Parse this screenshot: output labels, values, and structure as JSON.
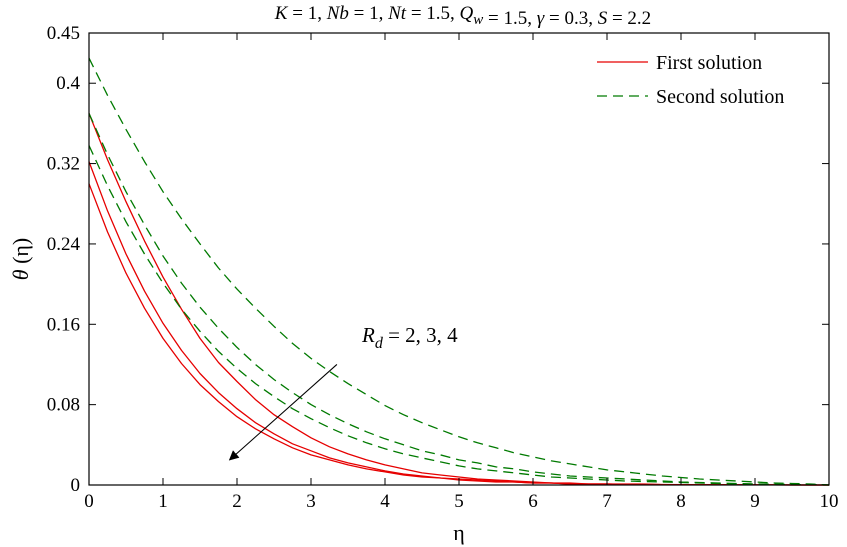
{
  "chart_data": {
    "type": "line",
    "title": {
      "parts": [
        {
          "t": "K",
          "style": "italic"
        },
        {
          "t": " = 1, "
        },
        {
          "t": "Nb",
          "style": "italic"
        },
        {
          "t": " = 1, "
        },
        {
          "t": "Nt",
          "style": "italic"
        },
        {
          "t": " = 1.5, "
        },
        {
          "t": "Q",
          "style": "italic"
        },
        {
          "t": "w",
          "style": "italic",
          "sub": true
        },
        {
          "t": " = 1.5, "
        },
        {
          "t": "γ",
          "style": "italic"
        },
        {
          "t": " = 0.3, "
        },
        {
          "t": "S",
          "style": "italic"
        },
        {
          "t": " = 2.2"
        }
      ]
    },
    "xlabel": "η",
    "ylabel": {
      "main": "θ",
      "rest": " (η)"
    },
    "xlim": [
      0,
      10
    ],
    "ylim": [
      0,
      0.45
    ],
    "xticks": [
      0,
      1,
      2,
      3,
      4,
      5,
      6,
      7,
      8,
      9,
      10
    ],
    "xtick_labels": [
      "0",
      "1",
      "2",
      "3",
      "4",
      "5",
      "6",
      "7",
      "8",
      "9",
      "10"
    ],
    "yticks": [
      0,
      0.08,
      0.16,
      0.24,
      0.32,
      0.4,
      0.45
    ],
    "ytick_labels": [
      "0",
      "0.08",
      "0.16",
      "0.24",
      "0.32",
      "0.4",
      "0.45"
    ],
    "grid": false,
    "legend_position": "top-right",
    "legend": [
      {
        "label": "First solution",
        "color": "#e60000",
        "dash": "solid"
      },
      {
        "label": "Second solution",
        "color": "#007a00",
        "dash": "dashed"
      }
    ],
    "annotation": {
      "main": "R",
      "sub": "d",
      "rest": " = 2, 3, 4",
      "arrow_from": [
        3.35,
        0.12
      ],
      "arrow_to": [
        1.9,
        0.025
      ]
    },
    "x": [
      0,
      0.25,
      0.5,
      0.75,
      1,
      1.25,
      1.5,
      1.75,
      2,
      2.25,
      2.5,
      2.75,
      3,
      3.25,
      3.5,
      3.75,
      4,
      4.25,
      4.5,
      4.75,
      5,
      5.25,
      5.5,
      5.75,
      6,
      6.25,
      6.5,
      6.75,
      7,
      7.25,
      7.5,
      7.75,
      8,
      8.25,
      8.5,
      8.75,
      9,
      9.25,
      9.5,
      9.75,
      10
    ],
    "series": [
      {
        "group": "first",
        "Rd": 2,
        "color": "#e60000",
        "dash": "solid",
        "values": [
          0.37,
          0.324,
          0.282,
          0.243,
          0.207,
          0.175,
          0.146,
          0.122,
          0.103,
          0.085,
          0.07,
          0.058,
          0.047,
          0.038,
          0.031,
          0.025,
          0.02,
          0.016,
          0.012,
          0.01,
          0.008,
          0.006,
          0.005,
          0.004,
          0.003,
          0.002,
          0.002,
          0.001,
          0.001,
          0.001,
          0.001,
          0.0005,
          0.0004,
          0.0003,
          0.0002,
          0.0002,
          0.0001,
          0.0001,
          0.0001,
          0,
          0
        ]
      },
      {
        "group": "first",
        "Rd": 3,
        "color": "#e60000",
        "dash": "solid",
        "values": [
          0.322,
          0.273,
          0.23,
          0.193,
          0.161,
          0.134,
          0.111,
          0.092,
          0.076,
          0.062,
          0.051,
          0.041,
          0.034,
          0.027,
          0.022,
          0.018,
          0.014,
          0.011,
          0.009,
          0.007,
          0.006,
          0.005,
          0.004,
          0.003,
          0.002,
          0.002,
          0.001,
          0.001,
          0.001,
          0.0006,
          0.0005,
          0.0004,
          0.0003,
          0.0002,
          0.0002,
          0.0001,
          0.0001,
          0.0001,
          0,
          0,
          0
        ]
      },
      {
        "group": "first",
        "Rd": 4,
        "color": "#e60000",
        "dash": "solid",
        "values": [
          0.3,
          0.252,
          0.211,
          0.176,
          0.146,
          0.121,
          0.1,
          0.083,
          0.068,
          0.056,
          0.046,
          0.037,
          0.03,
          0.025,
          0.02,
          0.016,
          0.013,
          0.01,
          0.008,
          0.007,
          0.005,
          0.004,
          0.003,
          0.003,
          0.002,
          0.002,
          0.001,
          0.001,
          0.001,
          0.0006,
          0.0005,
          0.0004,
          0.0003,
          0.0002,
          0.0002,
          0.0001,
          0.0001,
          0.0001,
          0,
          0,
          0
        ]
      },
      {
        "group": "second",
        "Rd": 2,
        "color": "#007a00",
        "dash": "dashed",
        "values": [
          0.425,
          0.388,
          0.354,
          0.322,
          0.292,
          0.265,
          0.24,
          0.216,
          0.195,
          0.176,
          0.158,
          0.141,
          0.126,
          0.113,
          0.101,
          0.09,
          0.079,
          0.07,
          0.062,
          0.055,
          0.048,
          0.042,
          0.037,
          0.032,
          0.028,
          0.024,
          0.021,
          0.018,
          0.015,
          0.013,
          0.011,
          0.009,
          0.0075,
          0.006,
          0.005,
          0.004,
          0.003,
          0.002,
          0.0015,
          0.001,
          0
        ]
      },
      {
        "group": "second",
        "Rd": 3,
        "color": "#007a00",
        "dash": "dashed",
        "values": [
          0.37,
          0.329,
          0.292,
          0.259,
          0.228,
          0.201,
          0.177,
          0.156,
          0.137,
          0.12,
          0.105,
          0.092,
          0.08,
          0.07,
          0.061,
          0.053,
          0.046,
          0.04,
          0.034,
          0.03,
          0.025,
          0.022,
          0.018,
          0.016,
          0.013,
          0.011,
          0.009,
          0.008,
          0.007,
          0.006,
          0.005,
          0.004,
          0.003,
          0.0025,
          0.002,
          0.0015,
          0.001,
          0.0008,
          0.0005,
          0.0003,
          0
        ]
      },
      {
        "group": "second",
        "Rd": 4,
        "color": "#007a00",
        "dash": "dashed",
        "values": [
          0.338,
          0.298,
          0.262,
          0.23,
          0.201,
          0.175,
          0.153,
          0.133,
          0.116,
          0.101,
          0.088,
          0.076,
          0.066,
          0.057,
          0.049,
          0.042,
          0.036,
          0.031,
          0.027,
          0.023,
          0.019,
          0.016,
          0.014,
          0.012,
          0.01,
          0.008,
          0.007,
          0.006,
          0.005,
          0.004,
          0.0035,
          0.003,
          0.0025,
          0.002,
          0.0015,
          0.001,
          0.0008,
          0.0006,
          0.0004,
          0.0002,
          0
        ]
      }
    ]
  }
}
